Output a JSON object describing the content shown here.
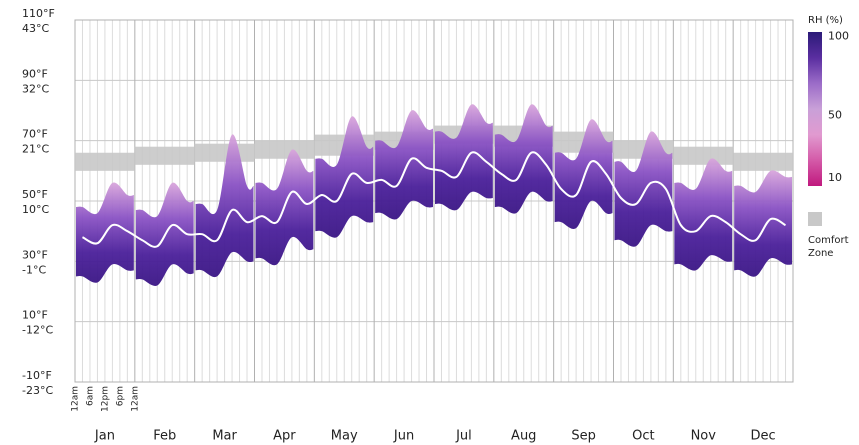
{
  "chart_data": {
    "type": "band",
    "categories": [
      "Jan",
      "Feb",
      "Mar",
      "Apr",
      "May",
      "Jun",
      "Jul",
      "Aug",
      "Sep",
      "Oct",
      "Nov",
      "Dec"
    ],
    "hour_labels": [
      "12am",
      "6am",
      "12pm",
      "6pm",
      "12am"
    ],
    "ylim": [
      -10,
      110
    ],
    "yticks": [
      {
        "value": 110,
        "label": "110°F"
      },
      {
        "value": 90,
        "label": "90°F"
      },
      {
        "value": 70,
        "label": "70°F"
      },
      {
        "value": 50,
        "label": "50°F"
      },
      {
        "value": 30,
        "label": "30°F"
      },
      {
        "value": 10,
        "label": "10°F"
      },
      {
        "value": -10,
        "label": "-10°F"
      }
    ],
    "y2lim": [
      -23.3,
      43.3
    ],
    "y2ticks": [
      {
        "value": 43.3,
        "label": "43°C"
      },
      {
        "value": 32.2,
        "label": "32°C"
      },
      {
        "value": 21.1,
        "label": "21°C"
      },
      {
        "value": 10,
        "label": "10°C"
      },
      {
        "value": -1.1,
        "label": "-1°C"
      },
      {
        "value": -12.2,
        "label": "-12°C"
      },
      {
        "value": -23.3,
        "label": "-23°C"
      }
    ],
    "grid": true,
    "mean": {
      "color": "#ffffff",
      "values": [
        38,
        36,
        42,
        40,
        37,
        35,
        42,
        39,
        39,
        37,
        47,
        43,
        45,
        43,
        53,
        49,
        52,
        50,
        59,
        56,
        57,
        55,
        64,
        61,
        60,
        58,
        66,
        63,
        59,
        57,
        66,
        62,
        54,
        52,
        63,
        59,
        51,
        49,
        56,
        54,
        42,
        40,
        45,
        43,
        39,
        37,
        44,
        42
      ]
    },
    "upper": {
      "values": [
        48,
        46,
        56,
        52,
        47,
        45,
        56,
        50,
        49,
        47,
        72,
        55,
        56,
        54,
        67,
        60,
        64,
        62,
        78,
        68,
        70,
        68,
        80,
        74,
        73,
        71,
        82,
        76,
        72,
        70,
        82,
        75,
        66,
        64,
        77,
        70,
        63,
        60,
        73,
        66,
        56,
        54,
        64,
        60,
        55,
        53,
        60,
        58
      ]
    },
    "lower": {
      "values": [
        25,
        23,
        29,
        27,
        24,
        22,
        29,
        26,
        27,
        25,
        33,
        30,
        31,
        29,
        38,
        34,
        40,
        38,
        45,
        43,
        46,
        44,
        50,
        48,
        49,
        47,
        53,
        51,
        48,
        46,
        53,
        50,
        43,
        41,
        50,
        46,
        37,
        35,
        42,
        40,
        29,
        27,
        32,
        30,
        27,
        25,
        31,
        29
      ]
    },
    "comfort_zone": {
      "label_lines": [
        "Comfort",
        "Zone"
      ],
      "color": "#c8c8c8",
      "low": [
        60,
        62,
        63,
        64,
        65,
        67,
        69,
        68,
        66,
        64,
        62,
        60
      ],
      "high": [
        66,
        68,
        69,
        70,
        72,
        73,
        75,
        75,
        73,
        70,
        68,
        66
      ]
    },
    "colorbar": {
      "title": "RH (%)",
      "clim": [
        5,
        103
      ],
      "ticks": [
        100,
        50,
        10
      ],
      "colors": [
        "#2b1a78",
        "#5a2ea0",
        "#9b6cc8",
        "#c9a0d8",
        "#e19ad0",
        "#d45aa8",
        "#c0197e"
      ]
    }
  }
}
